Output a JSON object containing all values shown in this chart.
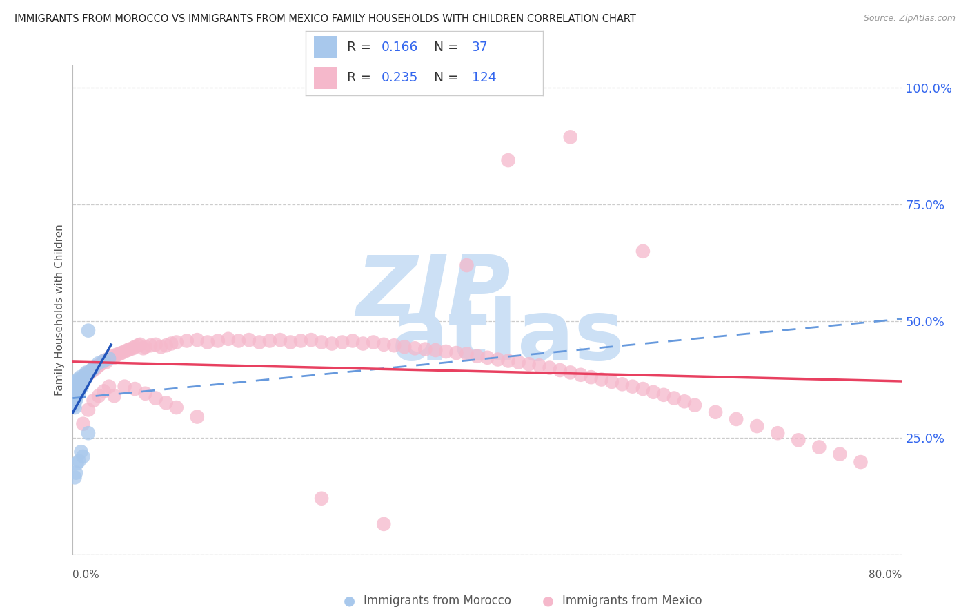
{
  "title": "IMMIGRANTS FROM MOROCCO VS IMMIGRANTS FROM MEXICO FAMILY HOUSEHOLDS WITH CHILDREN CORRELATION CHART",
  "source": "Source: ZipAtlas.com",
  "ylabel": "Family Households with Children",
  "legend_morocco_R": "0.166",
  "legend_morocco_N": "37",
  "legend_mexico_R": "0.235",
  "legend_mexico_N": "124",
  "legend_label_morocco": "Immigrants from Morocco",
  "legend_label_mexico": "Immigrants from Mexico",
  "morocco_color": "#A8C8EC",
  "mexico_color": "#F5B8CB",
  "morocco_trend_color": "#2255BB",
  "mexico_trend_color": "#E84060",
  "dashed_line_color": "#6699DD",
  "right_tick_color": "#3366EE",
  "label_value_color": "#3366EE",
  "label_eq_color": "#333333",
  "watermark_zip_color": "#CCE0F5",
  "watermark_atlas_color": "#CCE0F5",
  "title_color": "#222222",
  "axis_label_color": "#555555",
  "source_color": "#999999",
  "grid_color": "#CCCCCC",
  "xlim": [
    0.0,
    0.8
  ],
  "ylim": [
    0.0,
    1.05
  ],
  "right_yticks": [
    1.0,
    0.75,
    0.5,
    0.25
  ],
  "right_yticklabels": [
    "100.0%",
    "75.0%",
    "50.0%",
    "25.0%"
  ],
  "morocco_x": [
    0.001,
    0.001,
    0.001,
    0.002,
    0.002,
    0.002,
    0.002,
    0.003,
    0.003,
    0.003,
    0.004,
    0.004,
    0.005,
    0.005,
    0.006,
    0.006,
    0.007,
    0.007,
    0.008,
    0.009,
    0.01,
    0.011,
    0.012,
    0.013,
    0.015,
    0.018,
    0.02,
    0.025,
    0.03,
    0.035,
    0.015,
    0.008,
    0.01,
    0.006,
    0.004,
    0.003,
    0.002
  ],
  "morocco_y": [
    0.355,
    0.34,
    0.32,
    0.36,
    0.345,
    0.33,
    0.315,
    0.37,
    0.35,
    0.33,
    0.365,
    0.34,
    0.375,
    0.35,
    0.37,
    0.345,
    0.38,
    0.355,
    0.375,
    0.36,
    0.37,
    0.38,
    0.385,
    0.39,
    0.48,
    0.395,
    0.4,
    0.41,
    0.415,
    0.42,
    0.26,
    0.22,
    0.21,
    0.2,
    0.195,
    0.175,
    0.165
  ],
  "mexico_x": [
    0.002,
    0.003,
    0.004,
    0.005,
    0.006,
    0.007,
    0.008,
    0.009,
    0.01,
    0.011,
    0.012,
    0.013,
    0.015,
    0.016,
    0.018,
    0.019,
    0.02,
    0.022,
    0.023,
    0.025,
    0.027,
    0.028,
    0.03,
    0.032,
    0.033,
    0.035,
    0.038,
    0.04,
    0.042,
    0.045,
    0.047,
    0.05,
    0.053,
    0.055,
    0.058,
    0.06,
    0.063,
    0.065,
    0.068,
    0.07,
    0.075,
    0.08,
    0.085,
    0.09,
    0.095,
    0.1,
    0.11,
    0.12,
    0.13,
    0.14,
    0.15,
    0.16,
    0.17,
    0.18,
    0.19,
    0.2,
    0.21,
    0.22,
    0.23,
    0.24,
    0.25,
    0.26,
    0.27,
    0.28,
    0.29,
    0.3,
    0.31,
    0.32,
    0.33,
    0.34,
    0.35,
    0.36,
    0.37,
    0.38,
    0.39,
    0.4,
    0.41,
    0.42,
    0.43,
    0.44,
    0.45,
    0.46,
    0.47,
    0.48,
    0.49,
    0.5,
    0.51,
    0.52,
    0.53,
    0.54,
    0.55,
    0.56,
    0.57,
    0.58,
    0.59,
    0.6,
    0.62,
    0.64,
    0.66,
    0.68,
    0.7,
    0.72,
    0.74,
    0.76,
    0.01,
    0.015,
    0.02,
    0.025,
    0.03,
    0.035,
    0.04,
    0.05,
    0.06,
    0.07,
    0.08,
    0.09,
    0.1,
    0.12,
    0.48,
    0.42,
    0.55,
    0.38,
    0.3,
    0.24
  ],
  "mexico_y": [
    0.35,
    0.355,
    0.36,
    0.365,
    0.36,
    0.37,
    0.375,
    0.37,
    0.38,
    0.375,
    0.38,
    0.385,
    0.39,
    0.388,
    0.392,
    0.395,
    0.4,
    0.398,
    0.402,
    0.405,
    0.408,
    0.41,
    0.415,
    0.412,
    0.418,
    0.42,
    0.425,
    0.422,
    0.428,
    0.43,
    0.432,
    0.435,
    0.438,
    0.44,
    0.442,
    0.445,
    0.448,
    0.45,
    0.442,
    0.445,
    0.448,
    0.45,
    0.445,
    0.448,
    0.452,
    0.455,
    0.458,
    0.46,
    0.455,
    0.458,
    0.462,
    0.458,
    0.46,
    0.455,
    0.458,
    0.46,
    0.455,
    0.458,
    0.46,
    0.455,
    0.452,
    0.455,
    0.458,
    0.452,
    0.455,
    0.45,
    0.448,
    0.445,
    0.442,
    0.44,
    0.438,
    0.435,
    0.432,
    0.43,
    0.425,
    0.422,
    0.418,
    0.415,
    0.412,
    0.408,
    0.405,
    0.4,
    0.395,
    0.39,
    0.385,
    0.38,
    0.375,
    0.37,
    0.365,
    0.36,
    0.355,
    0.348,
    0.342,
    0.335,
    0.328,
    0.32,
    0.305,
    0.29,
    0.275,
    0.26,
    0.245,
    0.23,
    0.215,
    0.198,
    0.28,
    0.31,
    0.33,
    0.34,
    0.35,
    0.36,
    0.34,
    0.36,
    0.355,
    0.345,
    0.335,
    0.325,
    0.315,
    0.295,
    0.895,
    0.845,
    0.65,
    0.62,
    0.065,
    0.12
  ]
}
